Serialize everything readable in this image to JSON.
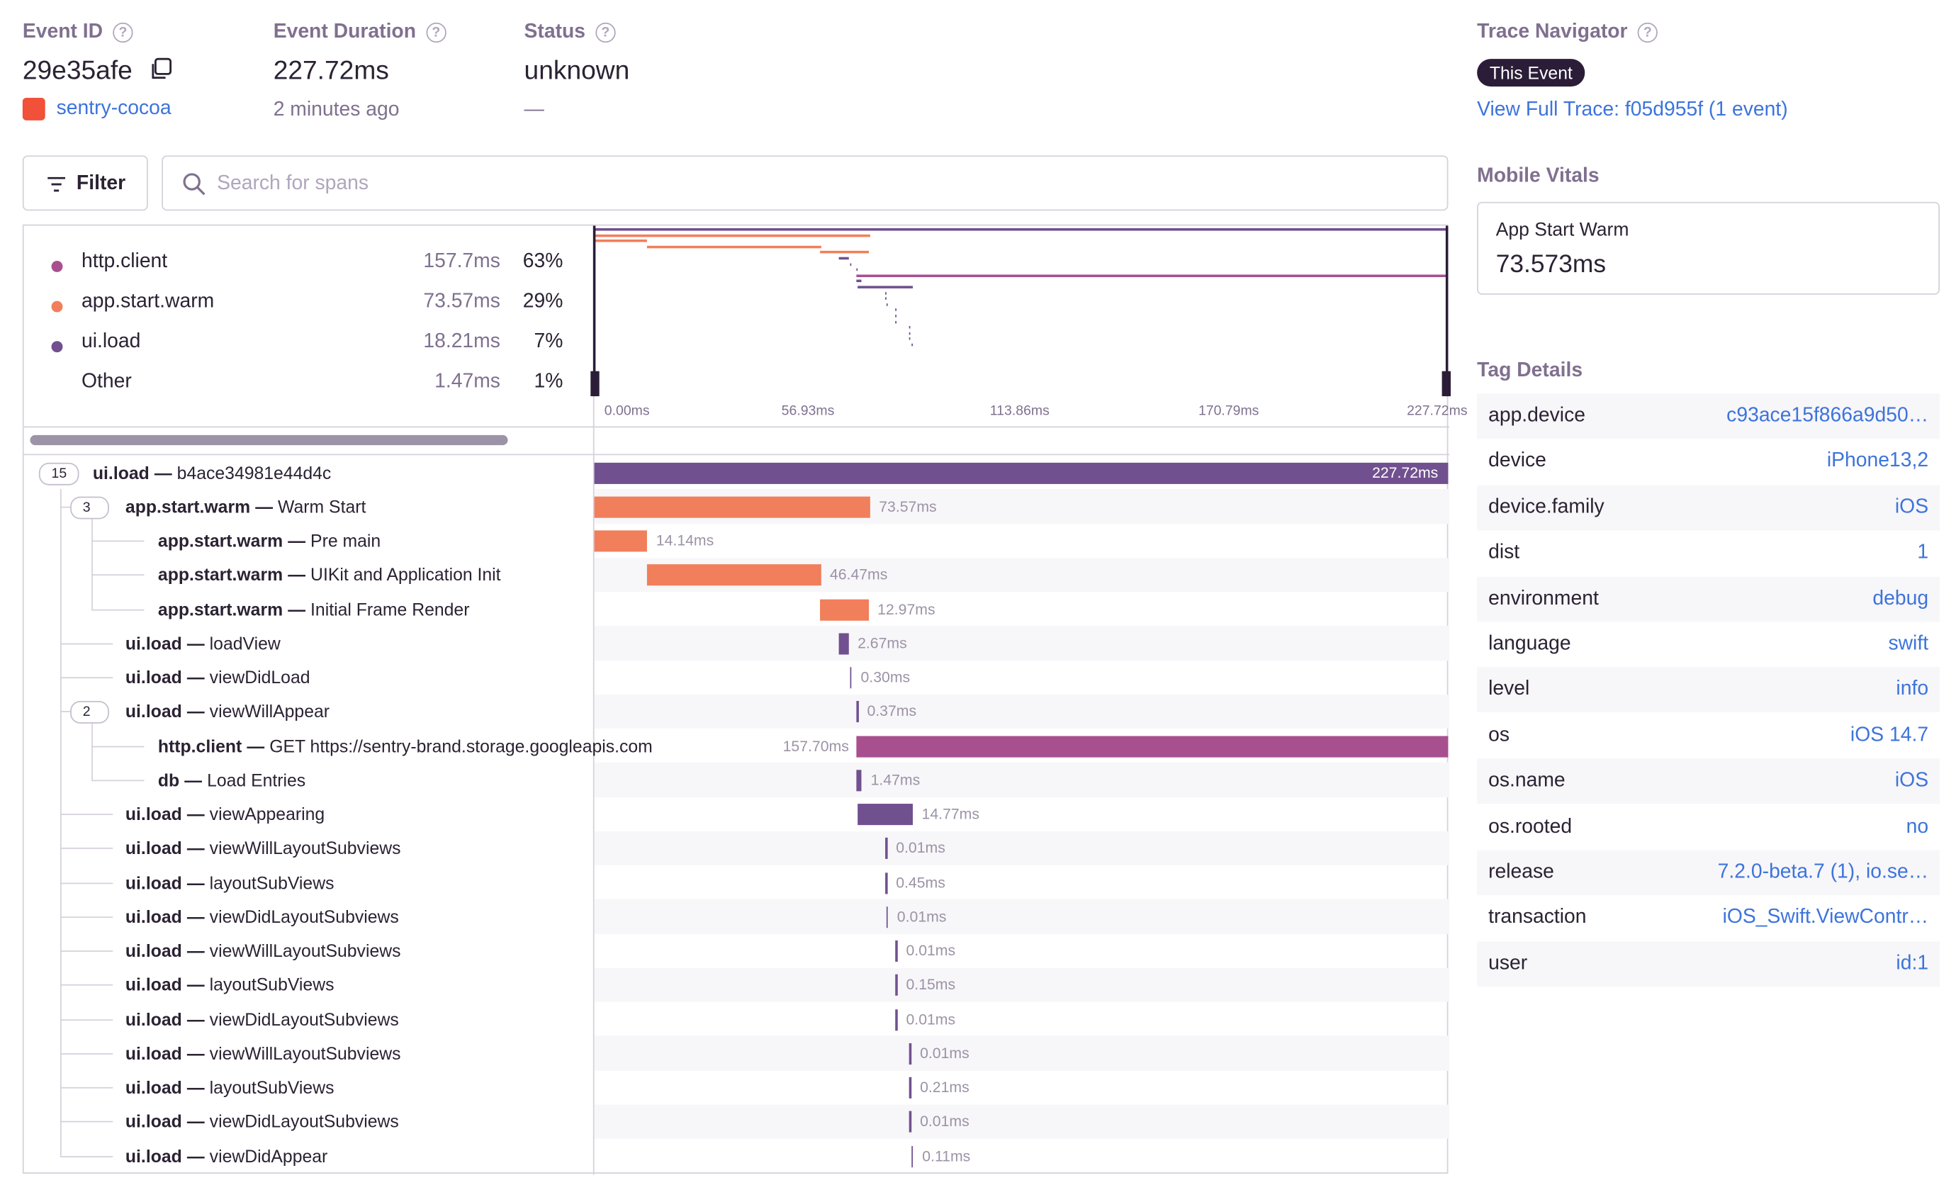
{
  "header": {
    "event_id": {
      "label": "Event ID",
      "value": "29e35afe",
      "project": "sentry-cocoa"
    },
    "duration": {
      "label": "Event Duration",
      "value": "227.72ms",
      "time": "2 minutes ago"
    },
    "status": {
      "label": "Status",
      "value": "unknown",
      "sub": "—"
    }
  },
  "toolbar": {
    "filter": "Filter",
    "search_placeholder": "Search for spans"
  },
  "ops_breakdown": [
    {
      "name": "http.client",
      "duration": "157.7ms",
      "percent": "63%",
      "color": "#a8508f"
    },
    {
      "name": "app.start.warm",
      "duration": "73.57ms",
      "percent": "29%",
      "color": "#f17f5b"
    },
    {
      "name": "ui.load",
      "duration": "18.21ms",
      "percent": "7%",
      "color": "#71508f"
    },
    {
      "name": "Other",
      "duration": "1.47ms",
      "percent": "1%"
    }
  ],
  "minimap": {
    "total": 227.72,
    "ticks": [
      "0.00ms",
      "56.93ms",
      "113.86ms",
      "170.79ms",
      "227.72ms"
    ]
  },
  "spans": [
    {
      "op": "ui.load",
      "desc": "b4ace34981e44d4c",
      "depth": 0,
      "children": "15",
      "start": 0,
      "duration": 227.72,
      "duration_label": "227.72ms",
      "color": "#71508f"
    },
    {
      "op": "app.start.warm",
      "desc": "Warm Start",
      "depth": 1,
      "children": "3",
      "start": 0,
      "duration": 73.57,
      "duration_label": "73.57ms",
      "color": "#f17f5b"
    },
    {
      "op": "app.start.warm",
      "desc": "Pre main",
      "depth": 2,
      "start": 0,
      "duration": 14.14,
      "duration_label": "14.14ms",
      "color": "#f17f5b"
    },
    {
      "op": "app.start.warm",
      "desc": "UIKit and Application Init",
      "depth": 2,
      "start": 14.0,
      "duration": 46.47,
      "duration_label": "46.47ms",
      "color": "#f17f5b"
    },
    {
      "op": "app.start.warm",
      "desc": "Initial Frame Render",
      "depth": 2,
      "start": 60.2,
      "duration": 12.97,
      "duration_label": "12.97ms",
      "color": "#f17f5b"
    },
    {
      "op": "ui.load",
      "desc": "loadView",
      "depth": 1,
      "start": 65.2,
      "duration": 2.67,
      "duration_label": "2.67ms",
      "color": "#71508f"
    },
    {
      "op": "ui.load",
      "desc": "viewDidLoad",
      "depth": 1,
      "start": 68.2,
      "duration": 0.3,
      "duration_label": "0.30ms",
      "color": "#71508f"
    },
    {
      "op": "ui.load",
      "desc": "viewWillAppear",
      "depth": 1,
      "children": "2",
      "start": 69.9,
      "duration": 0.37,
      "duration_label": "0.37ms",
      "color": "#71508f"
    },
    {
      "op": "http.client",
      "desc": "GET https://sentry-brand.storage.googleapis.com",
      "depth": 2,
      "start": 69.9,
      "duration": 157.7,
      "duration_label": "157.70ms",
      "color": "#a8508f"
    },
    {
      "op": "db",
      "desc": "Load Entries",
      "depth": 2,
      "start": 69.9,
      "duration": 1.47,
      "duration_label": "1.47ms",
      "color": "#71508f"
    },
    {
      "op": "ui.load",
      "desc": "viewAppearing",
      "depth": 1,
      "start": 70.2,
      "duration": 14.77,
      "duration_label": "14.77ms",
      "color": "#71508f"
    },
    {
      "op": "ui.load",
      "desc": "viewWillLayoutSubviews",
      "depth": 1,
      "start": 77.6,
      "duration": 0.01,
      "duration_label": "0.01ms",
      "color": "#71508f"
    },
    {
      "op": "ui.load",
      "desc": "layoutSubViews",
      "depth": 1,
      "start": 77.6,
      "duration": 0.45,
      "duration_label": "0.45ms",
      "color": "#71508f"
    },
    {
      "op": "ui.load",
      "desc": "viewDidLayoutSubviews",
      "depth": 1,
      "start": 77.9,
      "duration": 0.01,
      "duration_label": "0.01ms",
      "color": "#71508f"
    },
    {
      "op": "ui.load",
      "desc": "viewWillLayoutSubviews",
      "depth": 1,
      "start": 80.3,
      "duration": 0.01,
      "duration_label": "0.01ms",
      "color": "#71508f"
    },
    {
      "op": "ui.load",
      "desc": "layoutSubViews",
      "depth": 1,
      "start": 80.3,
      "duration": 0.15,
      "duration_label": "0.15ms",
      "color": "#71508f"
    },
    {
      "op": "ui.load",
      "desc": "viewDidLayoutSubviews",
      "depth": 1,
      "start": 80.3,
      "duration": 0.01,
      "duration_label": "0.01ms",
      "color": "#71508f"
    },
    {
      "op": "ui.load",
      "desc": "viewWillLayoutSubviews",
      "depth": 1,
      "start": 84.0,
      "duration": 0.01,
      "duration_label": "0.01ms",
      "color": "#71508f"
    },
    {
      "op": "ui.load",
      "desc": "layoutSubViews",
      "depth": 1,
      "start": 84.0,
      "duration": 0.21,
      "duration_label": "0.21ms",
      "color": "#71508f"
    },
    {
      "op": "ui.load",
      "desc": "viewDidLayoutSubviews",
      "depth": 1,
      "start": 84.0,
      "duration": 0.01,
      "duration_label": "0.01ms",
      "color": "#71508f"
    },
    {
      "op": "ui.load",
      "desc": "viewDidAppear",
      "depth": 1,
      "start": 84.6,
      "duration": 0.11,
      "duration_label": "0.11ms",
      "color": "#71508f"
    }
  ],
  "sidebar": {
    "trace_navigator": {
      "title": "Trace Navigator",
      "badge": "This Event",
      "link": "View Full Trace: f05d955f (1 event)"
    },
    "mobile_vitals": {
      "title": "Mobile Vitals",
      "name": "App Start Warm",
      "value": "73.573ms"
    },
    "tags": {
      "title": "Tag Details",
      "rows": [
        [
          "app.device",
          "c93ace15f866a9d50…"
        ],
        [
          "device",
          "iPhone13,2"
        ],
        [
          "device.family",
          "iOS"
        ],
        [
          "dist",
          "1"
        ],
        [
          "environment",
          "debug"
        ],
        [
          "language",
          "swift"
        ],
        [
          "level",
          "info"
        ],
        [
          "os",
          "iOS 14.7"
        ],
        [
          "os.name",
          "iOS"
        ],
        [
          "os.rooted",
          "no"
        ],
        [
          "release",
          "7.2.0-beta.7 (1), io.se…"
        ],
        [
          "transaction",
          "iOS_Swift.ViewContr…"
        ],
        [
          "user",
          "id:1"
        ]
      ]
    }
  }
}
